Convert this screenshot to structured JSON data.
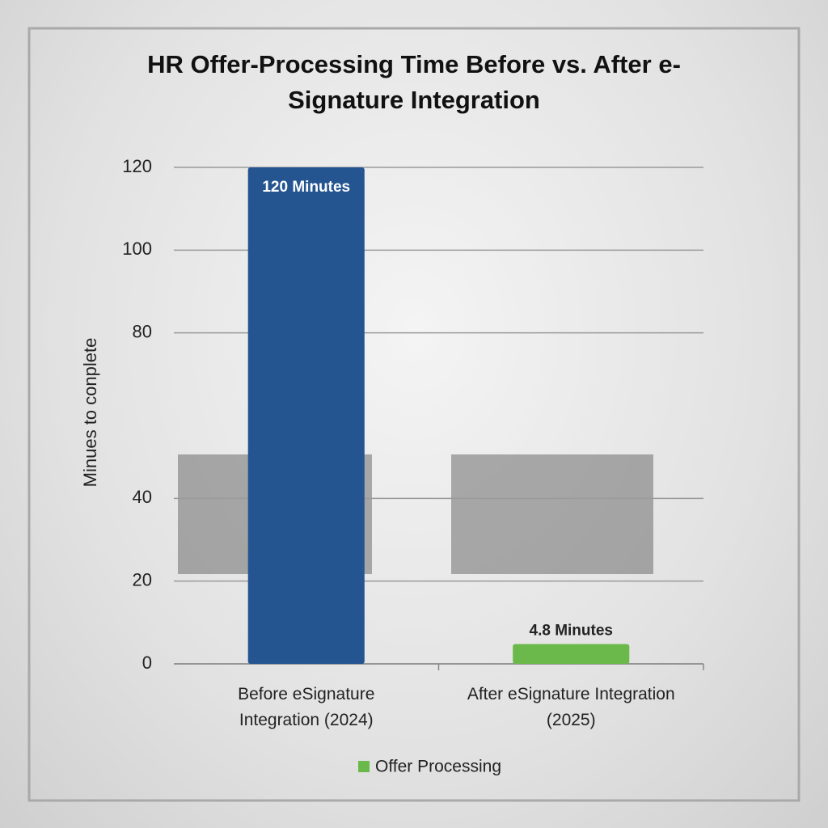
{
  "chart_data": {
    "type": "bar",
    "title": "HR Offer-Processing Time Before vs. After e-Signature Integration",
    "y_label": "Minues to conplete",
    "categories": [
      "Before eSignature Integration (2024)",
      "After eSignature Integration (2025)"
    ],
    "series": [
      {
        "name": "Offer Processing",
        "color": "#6ab94a",
        "values": [
          120,
          4.8
        ],
        "value_labels": [
          "120 Minutes",
          "4.8 Minutes"
        ]
      }
    ],
    "bar_colors": [
      "#245591",
      "#6ab94a"
    ],
    "ylim": [
      0,
      120
    ],
    "yticks": [
      0,
      20,
      40,
      80,
      100,
      120
    ],
    "grid": true
  }
}
